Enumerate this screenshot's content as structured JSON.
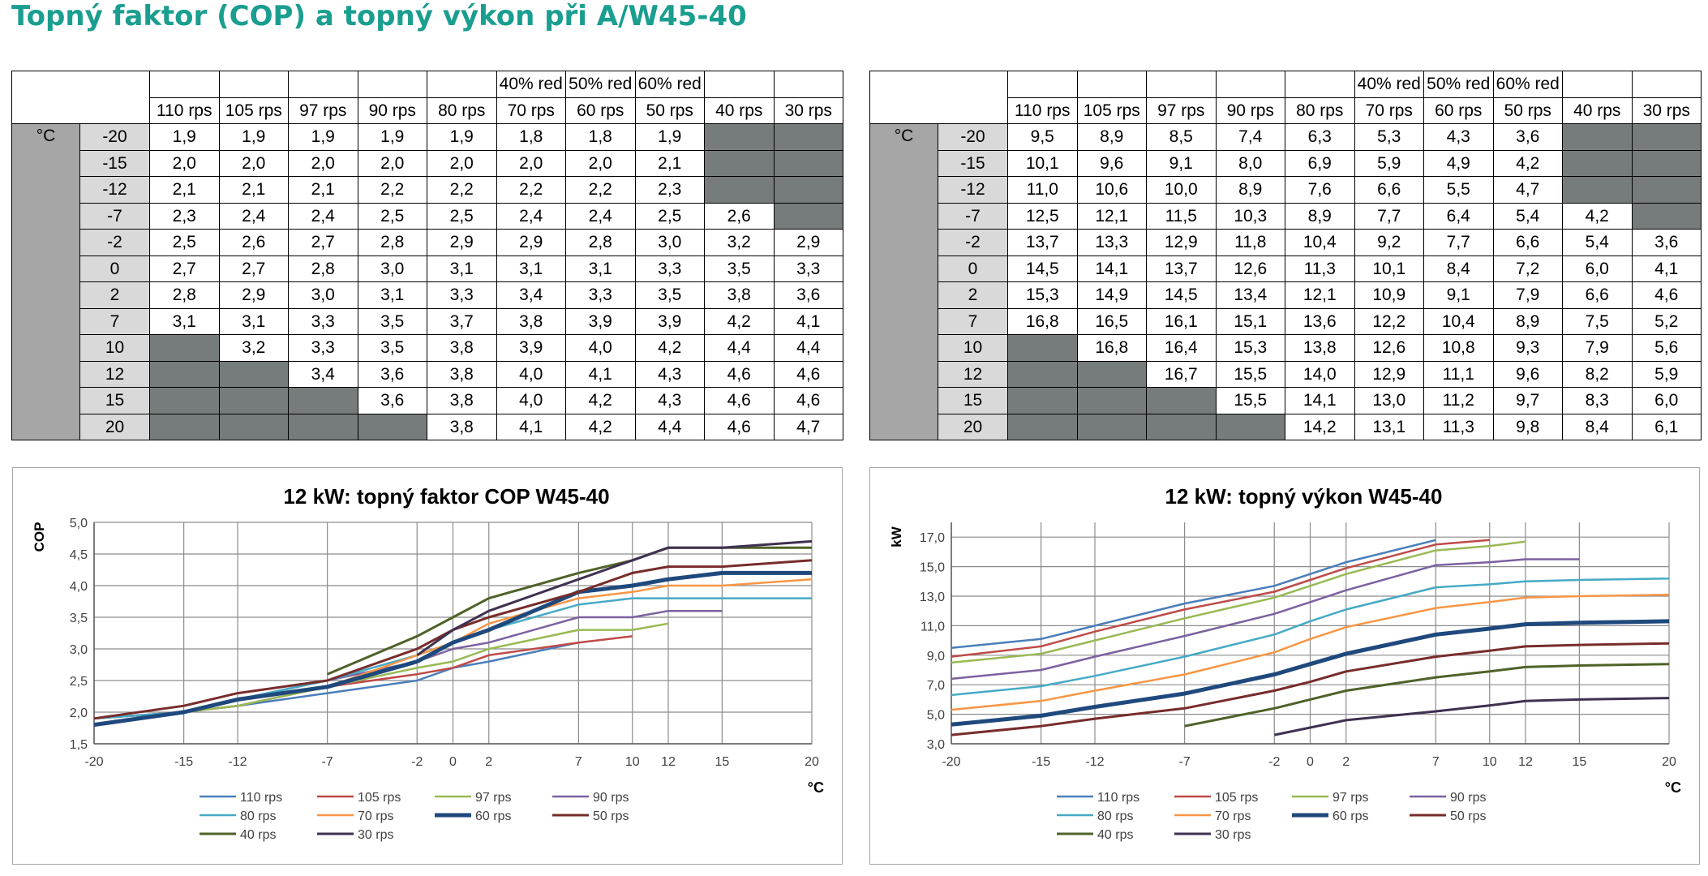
{
  "title": "Topný faktor (COP) a topný výkon při A/W45-40",
  "table": {
    "header_top": [
      "",
      "",
      "",
      "",
      "",
      "40% red",
      "50% red",
      "60% red",
      "",
      ""
    ],
    "header_rps": [
      "110 rps",
      "105 rps",
      "97 rps",
      "90 rps",
      "80 rps",
      "70 rps",
      "60 rps",
      "50 rps",
      "40 rps",
      "30 rps"
    ],
    "unit_label": "°C",
    "temps": [
      "-20",
      "-15",
      "-12",
      "-7",
      "-2",
      "0",
      "2",
      "7",
      "10",
      "12",
      "15",
      "20"
    ]
  },
  "cop_table": {
    "rows": [
      [
        "1,9",
        "1,9",
        "1,9",
        "1,9",
        "1,9",
        "1,8",
        "1,8",
        "1,9",
        null,
        null
      ],
      [
        "2,0",
        "2,0",
        "2,0",
        "2,0",
        "2,0",
        "2,0",
        "2,0",
        "2,1",
        null,
        null
      ],
      [
        "2,1",
        "2,1",
        "2,1",
        "2,2",
        "2,2",
        "2,2",
        "2,2",
        "2,3",
        null,
        null
      ],
      [
        "2,3",
        "2,4",
        "2,4",
        "2,5",
        "2,5",
        "2,4",
        "2,4",
        "2,5",
        "2,6",
        null
      ],
      [
        "2,5",
        "2,6",
        "2,7",
        "2,8",
        "2,9",
        "2,9",
        "2,8",
        "3,0",
        "3,2",
        "2,9"
      ],
      [
        "2,7",
        "2,7",
        "2,8",
        "3,0",
        "3,1",
        "3,1",
        "3,1",
        "3,3",
        "3,5",
        "3,3"
      ],
      [
        "2,8",
        "2,9",
        "3,0",
        "3,1",
        "3,3",
        "3,4",
        "3,3",
        "3,5",
        "3,8",
        "3,6"
      ],
      [
        "3,1",
        "3,1",
        "3,3",
        "3,5",
        "3,7",
        "3,8",
        "3,9",
        "3,9",
        "4,2",
        "4,1"
      ],
      [
        null,
        "3,2",
        "3,3",
        "3,5",
        "3,8",
        "3,9",
        "4,0",
        "4,2",
        "4,4",
        "4,4"
      ],
      [
        null,
        null,
        "3,4",
        "3,6",
        "3,8",
        "4,0",
        "4,1",
        "4,3",
        "4,6",
        "4,6"
      ],
      [
        null,
        null,
        null,
        "3,6",
        "3,8",
        "4,0",
        "4,2",
        "4,3",
        "4,6",
        "4,6"
      ],
      [
        null,
        null,
        null,
        null,
        "3,8",
        "4,1",
        "4,2",
        "4,4",
        "4,6",
        "4,7"
      ]
    ]
  },
  "kw_table": {
    "rows": [
      [
        "9,5",
        "8,9",
        "8,5",
        "7,4",
        "6,3",
        "5,3",
        "4,3",
        "3,6",
        null,
        null
      ],
      [
        "10,1",
        "9,6",
        "9,1",
        "8,0",
        "6,9",
        "5,9",
        "4,9",
        "4,2",
        null,
        null
      ],
      [
        "11,0",
        "10,6",
        "10,0",
        "8,9",
        "7,6",
        "6,6",
        "5,5",
        "4,7",
        null,
        null
      ],
      [
        "12,5",
        "12,1",
        "11,5",
        "10,3",
        "8,9",
        "7,7",
        "6,4",
        "5,4",
        "4,2",
        null
      ],
      [
        "13,7",
        "13,3",
        "12,9",
        "11,8",
        "10,4",
        "9,2",
        "7,7",
        "6,6",
        "5,4",
        "3,6"
      ],
      [
        "14,5",
        "14,1",
        "13,7",
        "12,6",
        "11,3",
        "10,1",
        "8,4",
        "7,2",
        "6,0",
        "4,1"
      ],
      [
        "15,3",
        "14,9",
        "14,5",
        "13,4",
        "12,1",
        "10,9",
        "9,1",
        "7,9",
        "6,6",
        "4,6"
      ],
      [
        "16,8",
        "16,5",
        "16,1",
        "15,1",
        "13,6",
        "12,2",
        "10,4",
        "8,9",
        "7,5",
        "5,2"
      ],
      [
        null,
        "16,8",
        "16,4",
        "15,3",
        "13,8",
        "12,6",
        "10,8",
        "9,3",
        "7,9",
        "5,6"
      ],
      [
        null,
        null,
        "16,7",
        "15,5",
        "14,0",
        "12,9",
        "11,1",
        "9,6",
        "8,2",
        "5,9"
      ],
      [
        null,
        null,
        null,
        "15,5",
        "14,1",
        "13,0",
        "11,2",
        "9,7",
        "8,3",
        "6,0"
      ],
      [
        null,
        null,
        null,
        null,
        "14,2",
        "13,1",
        "11,3",
        "9,8",
        "8,4",
        "6,1"
      ]
    ]
  },
  "colors": {
    "title": "#1a9e8f",
    "na_cell": "#767c7b",
    "unit_col": "#a6a6a6",
    "temp_col": "#d9d9d9"
  },
  "chart_data": [
    {
      "type": "line",
      "title": "12 kW: topný faktor COP W45-40",
      "ylabel": "COP",
      "xlabel": "°C",
      "x": [
        -20,
        -15,
        -12,
        -7,
        -2,
        0,
        2,
        7,
        10,
        12,
        15,
        20
      ],
      "x_tick_labels": [
        "-20",
        "-15",
        "-12",
        "-7",
        "-2",
        "0",
        "2",
        "7",
        "10",
        "12",
        "15",
        "20"
      ],
      "ylim": [
        1.5,
        5.0
      ],
      "y_ticks": [
        1.5,
        2.0,
        2.5,
        3.0,
        3.5,
        4.0,
        4.5,
        5.0
      ],
      "y_tick_labels": [
        "1,5",
        "2,0",
        "2,5",
        "3,0",
        "3,5",
        "4,0",
        "4,5",
        "5,0"
      ],
      "grid": true,
      "legend": "bottom",
      "series": [
        {
          "name": "110 rps",
          "color": "#4a7ebb",
          "width": 2.5,
          "values": [
            1.9,
            2.0,
            2.1,
            2.3,
            2.5,
            2.7,
            2.8,
            3.1,
            null,
            null,
            null,
            null
          ]
        },
        {
          "name": "105 rps",
          "color": "#be4b48",
          "width": 2.5,
          "values": [
            1.9,
            2.0,
            2.1,
            2.4,
            2.6,
            2.7,
            2.9,
            3.1,
            3.2,
            null,
            null,
            null
          ]
        },
        {
          "name": "97 rps",
          "color": "#98b954",
          "width": 2.5,
          "values": [
            1.9,
            2.0,
            2.1,
            2.4,
            2.7,
            2.8,
            3.0,
            3.3,
            3.3,
            3.4,
            null,
            null
          ]
        },
        {
          "name": "90 rps",
          "color": "#7d60a0",
          "width": 2.5,
          "values": [
            1.9,
            2.0,
            2.2,
            2.5,
            2.8,
            3.0,
            3.1,
            3.5,
            3.5,
            3.6,
            3.6,
            null
          ]
        },
        {
          "name": "80 rps",
          "color": "#46aac5",
          "width": 2.5,
          "values": [
            1.9,
            2.0,
            2.2,
            2.5,
            2.9,
            3.1,
            3.3,
            3.7,
            3.8,
            3.8,
            3.8,
            3.8
          ]
        },
        {
          "name": "70 rps",
          "color": "#f79646",
          "width": 2.5,
          "values": [
            1.8,
            2.0,
            2.2,
            2.4,
            2.9,
            3.1,
            3.4,
            3.8,
            3.9,
            4.0,
            4.0,
            4.1
          ]
        },
        {
          "name": "60 rps",
          "color": "#1f497d",
          "width": 5,
          "values": [
            1.8,
            2.0,
            2.2,
            2.4,
            2.8,
            3.1,
            3.3,
            3.9,
            4.0,
            4.1,
            4.2,
            4.2
          ]
        },
        {
          "name": "50 rps",
          "color": "#772c2a",
          "width": 3,
          "values": [
            1.9,
            2.1,
            2.3,
            2.5,
            3.0,
            3.3,
            3.5,
            3.9,
            4.2,
            4.3,
            4.3,
            4.4
          ]
        },
        {
          "name": "40 rps",
          "color": "#4f6228",
          "width": 3,
          "values": [
            null,
            null,
            null,
            2.6,
            3.2,
            3.5,
            3.8,
            4.2,
            4.4,
            4.6,
            4.6,
            4.6
          ]
        },
        {
          "name": "30 rps",
          "color": "#3f3151",
          "width": 3,
          "values": [
            null,
            null,
            null,
            null,
            2.9,
            3.3,
            3.6,
            4.1,
            4.4,
            4.6,
            4.6,
            4.7
          ]
        }
      ]
    },
    {
      "type": "line",
      "title": "12 kW: topný výkon W45-40",
      "ylabel": "kW",
      "xlabel": "°C",
      "x": [
        -20,
        -15,
        -12,
        -7,
        -2,
        0,
        2,
        7,
        10,
        12,
        15,
        20
      ],
      "x_tick_labels": [
        "-20",
        "-15",
        "-12",
        "-7",
        "-2",
        "0",
        "2",
        "7",
        "10",
        "12",
        "15",
        "20"
      ],
      "ylim": [
        3.0,
        18.0
      ],
      "y_ticks": [
        3,
        5,
        7,
        9,
        11,
        13,
        15,
        17
      ],
      "y_tick_labels": [
        "3,0",
        "5,0",
        "7,0",
        "9,0",
        "11,0",
        "13,0",
        "15,0",
        "17,0"
      ],
      "grid": true,
      "legend": "bottom",
      "series": [
        {
          "name": "110 rps",
          "color": "#4a7ebb",
          "width": 2.5,
          "values": [
            9.5,
            10.1,
            11.0,
            12.5,
            13.7,
            14.5,
            15.3,
            16.8,
            null,
            null,
            null,
            null
          ]
        },
        {
          "name": "105 rps",
          "color": "#be4b48",
          "width": 2.5,
          "values": [
            8.9,
            9.6,
            10.6,
            12.1,
            13.3,
            14.1,
            14.9,
            16.5,
            16.8,
            null,
            null,
            null
          ]
        },
        {
          "name": "97 rps",
          "color": "#98b954",
          "width": 2.5,
          "values": [
            8.5,
            9.1,
            10.0,
            11.5,
            12.9,
            13.7,
            14.5,
            16.1,
            16.4,
            16.7,
            null,
            null
          ]
        },
        {
          "name": "90 rps",
          "color": "#7d60a0",
          "width": 2.5,
          "values": [
            7.4,
            8.0,
            8.9,
            10.3,
            11.8,
            12.6,
            13.4,
            15.1,
            15.3,
            15.5,
            15.5,
            null
          ]
        },
        {
          "name": "80 rps",
          "color": "#46aac5",
          "width": 2.5,
          "values": [
            6.3,
            6.9,
            7.6,
            8.9,
            10.4,
            11.3,
            12.1,
            13.6,
            13.8,
            14.0,
            14.1,
            14.2
          ]
        },
        {
          "name": "70 rps",
          "color": "#f79646",
          "width": 2.5,
          "values": [
            5.3,
            5.9,
            6.6,
            7.7,
            9.2,
            10.1,
            10.9,
            12.2,
            12.6,
            12.9,
            13.0,
            13.1
          ]
        },
        {
          "name": "60 rps",
          "color": "#1f497d",
          "width": 5,
          "values": [
            4.3,
            4.9,
            5.5,
            6.4,
            7.7,
            8.4,
            9.1,
            10.4,
            10.8,
            11.1,
            11.2,
            11.3
          ]
        },
        {
          "name": "50 rps",
          "color": "#772c2a",
          "width": 3,
          "values": [
            3.6,
            4.2,
            4.7,
            5.4,
            6.6,
            7.2,
            7.9,
            8.9,
            9.3,
            9.6,
            9.7,
            9.8
          ]
        },
        {
          "name": "40 rps",
          "color": "#4f6228",
          "width": 3,
          "values": [
            null,
            null,
            null,
            4.2,
            5.4,
            6.0,
            6.6,
            7.5,
            7.9,
            8.2,
            8.3,
            8.4
          ]
        },
        {
          "name": "30 rps",
          "color": "#3f3151",
          "width": 3,
          "values": [
            null,
            null,
            null,
            null,
            3.6,
            4.1,
            4.6,
            5.2,
            5.6,
            5.9,
            6.0,
            6.1
          ]
        }
      ]
    }
  ]
}
